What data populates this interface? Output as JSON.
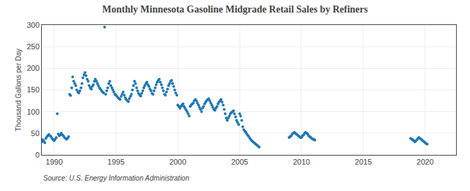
{
  "chart_data": {
    "type": "scatter",
    "title": "Monthly Minnesota Gasoline Midgrade Retail Sales by Refiners",
    "ylabel": "Thousand Gallons per Day",
    "annotations": [
      "Source: U.S. Energy Information Administration"
    ],
    "marker": "circle",
    "grid": true,
    "xlim": [
      1989.0,
      2022.5
    ],
    "xticks": [
      1990,
      1995,
      2000,
      2005,
      2010,
      2015,
      2020
    ],
    "ylim": [
      0,
      300
    ],
    "yticks": [
      0,
      50,
      100,
      150,
      200,
      250,
      300
    ],
    "x": [
      1989.0,
      1989.08,
      1989.17,
      1989.25,
      1989.33,
      1989.42,
      1989.5,
      1989.58,
      1989.67,
      1989.75,
      1989.83,
      1989.92,
      1990.0,
      1990.08,
      1990.17,
      1990.25,
      1990.33,
      1990.42,
      1990.5,
      1990.58,
      1990.67,
      1990.75,
      1990.83,
      1990.92,
      1991.0,
      1991.08,
      1991.17,
      1991.25,
      1991.33,
      1991.42,
      1991.5,
      1991.58,
      1991.67,
      1991.75,
      1991.83,
      1991.92,
      1992.0,
      1992.08,
      1992.17,
      1992.25,
      1992.33,
      1992.42,
      1992.5,
      1992.58,
      1992.67,
      1992.75,
      1992.83,
      1992.92,
      1993.0,
      1993.08,
      1993.17,
      1993.25,
      1993.33,
      1993.42,
      1993.5,
      1993.58,
      1993.67,
      1993.75,
      1993.83,
      1993.92,
      1994.0,
      1994.08,
      1994.17,
      1994.25,
      1994.33,
      1994.42,
      1994.5,
      1994.58,
      1994.67,
      1994.75,
      1994.83,
      1994.92,
      1995.0,
      1995.08,
      1995.17,
      1995.25,
      1995.33,
      1995.42,
      1995.5,
      1995.58,
      1995.67,
      1995.75,
      1995.83,
      1995.92,
      1996.0,
      1996.08,
      1996.17,
      1996.25,
      1996.33,
      1996.42,
      1996.5,
      1996.58,
      1996.67,
      1996.75,
      1996.83,
      1996.92,
      1997.0,
      1997.08,
      1997.17,
      1997.25,
      1997.33,
      1997.42,
      1997.5,
      1997.58,
      1997.67,
      1997.75,
      1997.83,
      1997.92,
      1998.0,
      1998.08,
      1998.17,
      1998.25,
      1998.33,
      1998.42,
      1998.5,
      1998.58,
      1998.67,
      1998.75,
      1998.83,
      1998.92,
      1999.0,
      1999.08,
      1999.17,
      1999.25,
      1999.33,
      1999.42,
      1999.5,
      1999.58,
      1999.67,
      1999.75,
      1999.83,
      1999.92,
      2000.0,
      2000.08,
      2000.17,
      2000.25,
      2000.33,
      2000.42,
      2000.5,
      2000.58,
      2000.67,
      2000.75,
      2000.83,
      2000.92,
      2001.0,
      2001.08,
      2001.17,
      2001.25,
      2001.33,
      2001.42,
      2001.5,
      2001.58,
      2001.67,
      2001.75,
      2001.83,
      2001.92,
      2002.0,
      2002.08,
      2002.17,
      2002.25,
      2002.33,
      2002.42,
      2002.5,
      2002.58,
      2002.67,
      2002.75,
      2002.83,
      2002.92,
      2003.0,
      2003.08,
      2003.17,
      2003.25,
      2003.33,
      2003.42,
      2003.5,
      2003.58,
      2003.67,
      2003.75,
      2003.83,
      2003.92,
      2004.0,
      2004.08,
      2004.17,
      2004.25,
      2004.33,
      2004.42,
      2004.5,
      2004.58,
      2004.67,
      2004.75,
      2004.83,
      2004.92,
      2005.0,
      2005.08,
      2005.17,
      2005.25,
      2005.33,
      2005.42,
      2005.5,
      2005.58,
      2005.67,
      2005.75,
      2005.83,
      2005.92,
      2006.0,
      2006.08,
      2006.17,
      2006.25,
      2006.33,
      2006.42,
      2006.5,
      2006.58,
      2009.0,
      2009.08,
      2009.17,
      2009.25,
      2009.33,
      2009.42,
      2009.5,
      2009.58,
      2009.67,
      2009.75,
      2009.83,
      2009.92,
      2010.0,
      2010.08,
      2010.17,
      2010.25,
      2010.33,
      2010.42,
      2010.5,
      2010.58,
      2010.67,
      2010.75,
      2010.83,
      2010.92,
      2011.0,
      2011.08,
      2018.83,
      2018.92,
      2019.0,
      2019.08,
      2019.17,
      2019.25,
      2019.33,
      2019.42,
      2019.5,
      2019.58,
      2019.67,
      2019.75,
      2019.83,
      2019.92,
      2020.0,
      2020.08,
      2020.17
    ],
    "values": [
      30,
      35,
      32,
      28,
      38,
      42,
      45,
      47,
      44,
      42,
      38,
      35,
      33,
      36,
      40,
      95,
      48,
      44,
      46,
      50,
      46,
      44,
      40,
      38,
      36,
      38,
      42,
      140,
      137,
      155,
      180,
      170,
      165,
      160,
      150,
      145,
      143,
      148,
      155,
      165,
      178,
      185,
      190,
      183,
      175,
      170,
      160,
      155,
      152,
      158,
      162,
      170,
      175,
      170,
      165,
      160,
      155,
      152,
      148,
      145,
      143,
      295,
      140,
      148,
      155,
      165,
      170,
      160,
      155,
      150,
      145,
      140,
      138,
      135,
      132,
      130,
      128,
      135,
      140,
      145,
      138,
      132,
      128,
      125,
      123,
      130,
      135,
      140,
      150,
      160,
      170,
      165,
      155,
      148,
      142,
      138,
      136,
      142,
      148,
      155,
      160,
      165,
      168,
      162,
      158,
      152,
      148,
      142,
      140,
      148,
      155,
      162,
      168,
      172,
      175,
      168,
      162,
      155,
      148,
      140,
      138,
      145,
      152,
      160,
      165,
      170,
      172,
      165,
      158,
      150,
      143,
      138,
      115,
      112,
      108,
      112,
      115,
      118,
      112,
      108,
      104,
      100,
      95,
      90,
      112,
      115,
      118,
      120,
      125,
      128,
      125,
      120,
      115,
      110,
      105,
      100,
      108,
      112,
      118,
      122,
      125,
      128,
      130,
      125,
      120,
      115,
      110,
      105,
      103,
      108,
      112,
      118,
      122,
      125,
      128,
      122,
      115,
      105,
      95,
      85,
      80,
      85,
      90,
      95,
      98,
      100,
      102,
      95,
      88,
      80,
      75,
      70,
      95,
      90,
      80,
      65,
      58,
      55,
      52,
      48,
      45,
      42,
      38,
      35,
      32,
      30,
      28,
      26,
      24,
      22,
      20,
      18,
      40,
      42,
      44,
      48,
      50,
      52,
      50,
      48,
      46,
      44,
      42,
      40,
      40,
      44,
      46,
      50,
      52,
      50,
      48,
      44,
      42,
      40,
      38,
      36,
      36,
      34,
      38,
      36,
      35,
      33,
      30,
      32,
      35,
      38,
      40,
      38,
      36,
      34,
      32,
      30,
      28,
      26,
      25
    ]
  }
}
